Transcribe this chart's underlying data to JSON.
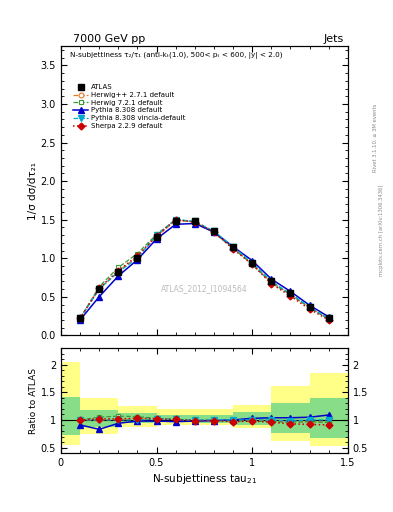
{
  "title_top": "7000 GeV pp",
  "title_right": "Jets",
  "subplot_title": "N-subjettiness τ₂/τ₁ (anti-kₜ(1.0), 500< pₜ < 600, |y| < 2.0)",
  "watermark": "ATLAS_2012_I1094564",
  "right_label": "Rivet 3.1.10, ≥ 3M events",
  "right_label2": "mcplots.cern.ch [arXiv:1306.3436]",
  "xlabel": "N-subjettiness tau",
  "xlabel_sub": "21",
  "ylabel_main": "1/σ dσ/dτ₂₁",
  "ylabel_ratio": "Ratio to ATLAS",
  "xlim": [
    0,
    1.5
  ],
  "ylim_main": [
    0,
    3.75
  ],
  "ylim_ratio": [
    0.4,
    2.3
  ],
  "yticks_main": [
    0.5,
    1.0,
    1.5,
    2.0,
    2.5,
    3.0,
    3.5
  ],
  "ytick_labels_main": [
    "0.5",
    "1",
    "1.5",
    "2",
    "2.5",
    "3",
    "3.5"
  ],
  "yticks_ratio": [
    0.5,
    1.0,
    1.5,
    2.0
  ],
  "ytick_labels_ratio": [
    "0.5",
    "1",
    "1.5",
    "2"
  ],
  "xticks": [
    0.0,
    0.5,
    1.0,
    1.5
  ],
  "xtick_labels": [
    "0",
    "0.5",
    "1",
    "1.5"
  ],
  "x_atlas": [
    0.1,
    0.2,
    0.3,
    0.4,
    0.5,
    0.6,
    0.7,
    0.8,
    0.9,
    1.0,
    1.1,
    1.2,
    1.3,
    1.4
  ],
  "y_atlas": [
    0.22,
    0.6,
    0.82,
    1.0,
    1.27,
    1.48,
    1.48,
    1.35,
    1.15,
    0.94,
    0.7,
    0.55,
    0.37,
    0.22
  ],
  "y_hw271": [
    0.22,
    0.6,
    0.83,
    1.02,
    1.28,
    1.49,
    1.47,
    1.34,
    1.13,
    0.93,
    0.69,
    0.53,
    0.36,
    0.21
  ],
  "y_hw721": [
    0.22,
    0.63,
    0.88,
    1.06,
    1.31,
    1.5,
    1.47,
    1.33,
    1.13,
    0.92,
    0.68,
    0.53,
    0.36,
    0.21
  ],
  "y_py308": [
    0.2,
    0.5,
    0.77,
    0.98,
    1.25,
    1.44,
    1.45,
    1.34,
    1.15,
    0.97,
    0.73,
    0.57,
    0.39,
    0.24
  ],
  "y_py308v": [
    0.22,
    0.6,
    0.82,
    1.0,
    1.3,
    1.5,
    1.48,
    1.35,
    1.15,
    0.94,
    0.7,
    0.54,
    0.37,
    0.22
  ],
  "y_sherpa": [
    0.22,
    0.61,
    0.84,
    1.03,
    1.29,
    1.5,
    1.47,
    1.34,
    1.12,
    0.92,
    0.67,
    0.51,
    0.34,
    0.2
  ],
  "ratio_hw271": [
    1.0,
    1.0,
    1.01,
    1.02,
    1.01,
    1.01,
    0.99,
    0.99,
    0.98,
    0.99,
    0.99,
    0.96,
    0.97,
    0.955
  ],
  "ratio_hw721": [
    1.0,
    1.05,
    1.07,
    1.06,
    1.03,
    1.01,
    0.99,
    0.99,
    0.98,
    0.98,
    0.97,
    0.96,
    0.97,
    0.955
  ],
  "ratio_py308": [
    0.91,
    0.83,
    0.94,
    0.98,
    0.98,
    0.97,
    0.98,
    0.99,
    1.0,
    1.03,
    1.04,
    1.04,
    1.05,
    1.09
  ],
  "ratio_py308v": [
    1.0,
    1.0,
    1.0,
    1.0,
    1.02,
    1.01,
    1.0,
    1.0,
    1.0,
    1.0,
    1.0,
    0.98,
    1.0,
    1.0
  ],
  "ratio_sherpa": [
    1.0,
    1.02,
    1.02,
    1.03,
    1.02,
    1.01,
    0.99,
    0.99,
    0.97,
    0.98,
    0.96,
    0.93,
    0.92,
    0.91
  ],
  "yellow_x_edges": [
    0.0,
    0.1,
    0.3,
    0.5,
    0.7,
    0.9,
    1.1,
    1.3,
    1.5
  ],
  "yellow_low": [
    0.55,
    0.75,
    0.88,
    0.9,
    0.9,
    0.85,
    0.62,
    0.52
  ],
  "yellow_high": [
    2.05,
    1.4,
    1.26,
    1.2,
    1.2,
    1.28,
    1.62,
    1.85
  ],
  "green_low": [
    0.72,
    0.88,
    0.94,
    0.96,
    0.94,
    0.9,
    0.77,
    0.67
  ],
  "green_high": [
    1.42,
    1.18,
    1.13,
    1.09,
    1.09,
    1.14,
    1.3,
    1.4
  ],
  "color_atlas": "#000000",
  "color_hw271": "#e87722",
  "color_hw721": "#3a9a3a",
  "color_py308": "#0000cc",
  "color_py308v": "#00aacc",
  "color_sherpa": "#cc0000",
  "color_yellow": "#ffff88",
  "color_green": "#88dd88",
  "bg_color": "#ffffff",
  "legend_labels": [
    "ATLAS",
    "Herwig++ 2.7.1 default",
    "Herwig 7.2.1 default",
    "Pythia 8.308 default",
    "Pythia 8.308 vincia-default",
    "Sherpa 2.2.9 default"
  ]
}
